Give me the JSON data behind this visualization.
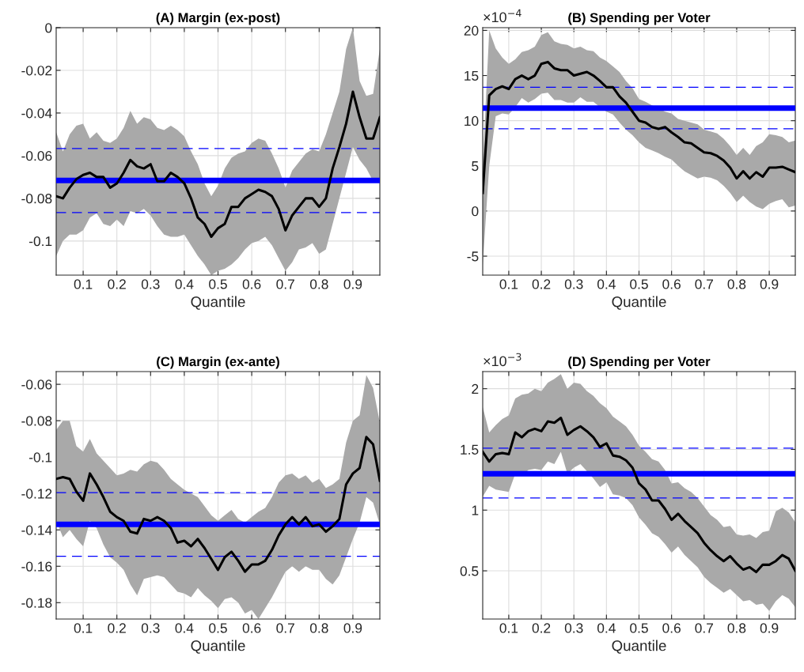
{
  "chart_data": [
    {
      "type": "line",
      "title": "(A) Margin (ex-post)",
      "xlabel": "Quantile",
      "grid": true,
      "xlim": [
        0.02,
        0.98
      ],
      "xticks": [
        0.1,
        0.2,
        0.3,
        0.4,
        0.5,
        0.6,
        0.7,
        0.8,
        0.9
      ],
      "ylim": [
        -0.116,
        0
      ],
      "yticks": [
        {
          "value": -0.1,
          "label": "-0.1"
        },
        {
          "value": -0.08,
          "label": "-0.08"
        },
        {
          "value": -0.06,
          "label": "-0.06"
        },
        {
          "value": -0.04,
          "label": "-0.04"
        },
        {
          "value": -0.02,
          "label": "-0.02"
        },
        0
      ],
      "x": [
        0.02,
        0.04,
        0.06,
        0.08,
        0.1,
        0.12,
        0.14,
        0.16,
        0.18,
        0.2,
        0.22,
        0.24,
        0.26,
        0.28,
        0.3,
        0.32,
        0.34,
        0.36,
        0.38,
        0.4,
        0.42,
        0.44,
        0.46,
        0.48,
        0.5,
        0.52,
        0.54,
        0.56,
        0.58,
        0.6,
        0.62,
        0.64,
        0.66,
        0.68,
        0.7,
        0.72,
        0.74,
        0.76,
        0.78,
        0.8,
        0.82,
        0.84,
        0.86,
        0.88,
        0.9,
        0.92,
        0.94,
        0.96,
        0.98
      ],
      "series": [
        {
          "color": "#000000",
          "line_style": "solid",
          "values": [
            -0.079,
            -0.08,
            -0.075,
            -0.071,
            -0.069,
            -0.068,
            -0.07,
            -0.07,
            -0.075,
            -0.073,
            -0.068,
            -0.062,
            -0.065,
            -0.066,
            -0.064,
            -0.072,
            -0.072,
            -0.068,
            -0.07,
            -0.073,
            -0.08,
            -0.089,
            -0.092,
            -0.098,
            -0.094,
            -0.092,
            -0.084,
            -0.084,
            -0.08,
            -0.078,
            -0.076,
            -0.077,
            -0.079,
            -0.085,
            -0.095,
            -0.088,
            -0.084,
            -0.08,
            -0.08,
            -0.084,
            -0.08,
            -0.066,
            -0.056,
            -0.045,
            -0.03,
            -0.042,
            -0.052,
            -0.052,
            -0.042
          ],
          "upper": [
            -0.049,
            -0.058,
            -0.05,
            -0.046,
            -0.045,
            -0.052,
            -0.049,
            -0.053,
            -0.054,
            -0.052,
            -0.047,
            -0.039,
            -0.045,
            -0.042,
            -0.043,
            -0.047,
            -0.048,
            -0.046,
            -0.048,
            -0.051,
            -0.058,
            -0.064,
            -0.073,
            -0.079,
            -0.074,
            -0.066,
            -0.061,
            -0.059,
            -0.058,
            -0.054,
            -0.052,
            -0.053,
            -0.059,
            -0.066,
            -0.075,
            -0.067,
            -0.063,
            -0.059,
            -0.057,
            -0.058,
            -0.05,
            -0.04,
            -0.03,
            -0.01,
            0.0,
            -0.025,
            -0.032,
            -0.031,
            -0.01
          ],
          "lower": [
            -0.107,
            -0.1,
            -0.097,
            -0.097,
            -0.095,
            -0.089,
            -0.087,
            -0.092,
            -0.093,
            -0.09,
            -0.093,
            -0.086,
            -0.087,
            -0.085,
            -0.088,
            -0.093,
            -0.097,
            -0.098,
            -0.098,
            -0.097,
            -0.102,
            -0.107,
            -0.111,
            -0.116,
            -0.114,
            -0.113,
            -0.111,
            -0.108,
            -0.104,
            -0.101,
            -0.1,
            -0.098,
            -0.102,
            -0.108,
            -0.114,
            -0.11,
            -0.104,
            -0.103,
            -0.101,
            -0.106,
            -0.104,
            -0.092,
            -0.08,
            -0.068,
            -0.056,
            -0.062,
            -0.066,
            -0.072,
            -0.071
          ]
        }
      ],
      "ref_lines": [
        {
          "axis": "y",
          "value": -0.0716,
          "color": "#0000ff",
          "line_style": "solid"
        },
        {
          "axis": "y",
          "value": -0.0567,
          "color": "#0000ff",
          "line_style": "dashed"
        },
        {
          "axis": "y",
          "value": -0.0867,
          "color": "#0000ff",
          "line_style": "dashed"
        }
      ]
    },
    {
      "type": "line",
      "title": "(B) Spending per Voter",
      "xlabel": "Quantile",
      "grid": true,
      "annotations": [
        "×10$^{−4}$"
      ],
      "xlim": [
        0.02,
        0.98
      ],
      "xticks": [
        0.1,
        0.2,
        0.3,
        0.4,
        0.5,
        0.6,
        0.7,
        0.8,
        0.9
      ],
      "ylim": [
        -7.1,
        20.3
      ],
      "yticks": [
        {
          "value": -5,
          "label": "-5"
        },
        0,
        5,
        10,
        15,
        20
      ],
      "x": [
        0.02,
        0.04,
        0.06,
        0.08,
        0.1,
        0.12,
        0.14,
        0.16,
        0.18,
        0.2,
        0.22,
        0.24,
        0.26,
        0.28,
        0.3,
        0.32,
        0.34,
        0.36,
        0.38,
        0.4,
        0.42,
        0.44,
        0.46,
        0.48,
        0.5,
        0.52,
        0.54,
        0.56,
        0.58,
        0.6,
        0.62,
        0.64,
        0.66,
        0.68,
        0.7,
        0.72,
        0.74,
        0.76,
        0.78,
        0.8,
        0.82,
        0.84,
        0.86,
        0.88,
        0.9,
        0.92,
        0.94,
        0.96,
        0.98
      ],
      "series": [
        {
          "color": "#000000",
          "line_style": "solid",
          "values": [
            2.0,
            12.8,
            13.5,
            13.8,
            13.5,
            14.6,
            15.0,
            14.6,
            15.0,
            16.3,
            16.5,
            15.8,
            15.6,
            15.6,
            15.0,
            15.2,
            15.4,
            15.0,
            14.4,
            13.7,
            13.7,
            12.7,
            12.0,
            11.0,
            10.0,
            9.8,
            9.3,
            9.1,
            9.3,
            8.7,
            8.2,
            7.6,
            7.5,
            7.0,
            6.5,
            6.4,
            6.1,
            5.6,
            4.8,
            3.6,
            4.4,
            3.6,
            4.3,
            3.8,
            4.8,
            4.8,
            4.9,
            4.6,
            4.3
          ],
          "upper": [
            5.0,
            20.0,
            18.0,
            17.0,
            16.3,
            16.8,
            17.6,
            17.8,
            18.2,
            19.5,
            19.8,
            18.8,
            18.5,
            18.4,
            18.0,
            18.2,
            17.8,
            17.7,
            17.0,
            16.6,
            16.0,
            15.4,
            14.4,
            13.6,
            12.4,
            12.1,
            11.7,
            11.4,
            11.0,
            10.8,
            10.2,
            10.0,
            9.8,
            9.6,
            9.0,
            8.8,
            8.6,
            8.0,
            7.2,
            6.2,
            7.0,
            6.2,
            7.2,
            7.6,
            8.5,
            8.4,
            8.2,
            7.6,
            7.8
          ],
          "lower": [
            -6.0,
            5.0,
            10.5,
            10.8,
            10.7,
            11.5,
            12.5,
            12.0,
            12.4,
            13.0,
            13.1,
            12.3,
            12.3,
            12.0,
            12.0,
            12.6,
            12.1,
            12.1,
            11.5,
            11.0,
            10.7,
            9.8,
            9.0,
            8.4,
            7.6,
            7.0,
            6.7,
            6.4,
            6.0,
            5.7,
            5.0,
            4.4,
            4.0,
            3.6,
            3.8,
            3.7,
            3.4,
            2.8,
            2.0,
            1.0,
            1.7,
            1.0,
            0.5,
            0.2,
            0.8,
            1.1,
            1.3,
            0.4,
            0.6
          ]
        }
      ],
      "ref_lines": [
        {
          "axis": "y",
          "value": 11.4,
          "color": "#0000ff",
          "line_style": "solid"
        },
        {
          "axis": "y",
          "value": 13.7,
          "color": "#0000ff",
          "line_style": "dashed"
        },
        {
          "axis": "y",
          "value": 9.1,
          "color": "#0000ff",
          "line_style": "dashed"
        }
      ]
    },
    {
      "type": "line",
      "title": "(C) Margin (ex-ante)",
      "xlabel": "Quantile",
      "grid": true,
      "xlim": [
        0.02,
        0.98
      ],
      "xticks": [
        0.1,
        0.2,
        0.3,
        0.4,
        0.5,
        0.6,
        0.7,
        0.8,
        0.9
      ],
      "ylim": [
        -0.189,
        -0.053
      ],
      "yticks": [
        {
          "value": -0.18,
          "label": "-0.18"
        },
        {
          "value": -0.16,
          "label": "-0.16"
        },
        {
          "value": -0.14,
          "label": "-0.14"
        },
        {
          "value": -0.12,
          "label": "-0.12"
        },
        {
          "value": -0.1,
          "label": "-0.1"
        },
        {
          "value": -0.08,
          "label": "-0.08"
        },
        {
          "value": -0.06,
          "label": "-0.06"
        }
      ],
      "x": [
        0.02,
        0.04,
        0.06,
        0.08,
        0.1,
        0.12,
        0.14,
        0.16,
        0.18,
        0.2,
        0.22,
        0.24,
        0.26,
        0.28,
        0.3,
        0.32,
        0.34,
        0.36,
        0.38,
        0.4,
        0.42,
        0.44,
        0.46,
        0.48,
        0.5,
        0.52,
        0.54,
        0.56,
        0.58,
        0.6,
        0.62,
        0.64,
        0.66,
        0.68,
        0.7,
        0.72,
        0.74,
        0.76,
        0.78,
        0.8,
        0.82,
        0.84,
        0.86,
        0.88,
        0.9,
        0.92,
        0.94,
        0.96,
        0.98
      ],
      "series": [
        {
          "color": "#000000",
          "line_style": "solid",
          "values": [
            -0.112,
            -0.111,
            -0.112,
            -0.119,
            -0.124,
            -0.109,
            -0.115,
            -0.122,
            -0.13,
            -0.133,
            -0.135,
            -0.141,
            -0.142,
            -0.134,
            -0.135,
            -0.133,
            -0.135,
            -0.139,
            -0.147,
            -0.146,
            -0.149,
            -0.145,
            -0.15,
            -0.156,
            -0.162,
            -0.155,
            -0.152,
            -0.157,
            -0.163,
            -0.159,
            -0.159,
            -0.157,
            -0.151,
            -0.143,
            -0.137,
            -0.133,
            -0.137,
            -0.133,
            -0.138,
            -0.137,
            -0.141,
            -0.138,
            -0.134,
            -0.115,
            -0.109,
            -0.106,
            -0.089,
            -0.093,
            -0.113
          ],
          "upper": [
            -0.085,
            -0.08,
            -0.08,
            -0.094,
            -0.097,
            -0.09,
            -0.098,
            -0.102,
            -0.106,
            -0.11,
            -0.109,
            -0.107,
            -0.108,
            -0.104,
            -0.102,
            -0.103,
            -0.107,
            -0.112,
            -0.115,
            -0.118,
            -0.12,
            -0.122,
            -0.127,
            -0.132,
            -0.135,
            -0.132,
            -0.129,
            -0.134,
            -0.136,
            -0.133,
            -0.13,
            -0.128,
            -0.122,
            -0.114,
            -0.11,
            -0.109,
            -0.112,
            -0.11,
            -0.114,
            -0.112,
            -0.117,
            -0.115,
            -0.112,
            -0.092,
            -0.08,
            -0.077,
            -0.055,
            -0.062,
            -0.081
          ],
          "lower": [
            -0.135,
            -0.144,
            -0.14,
            -0.145,
            -0.149,
            -0.135,
            -0.139,
            -0.148,
            -0.155,
            -0.158,
            -0.162,
            -0.17,
            -0.176,
            -0.167,
            -0.166,
            -0.165,
            -0.166,
            -0.17,
            -0.174,
            -0.175,
            -0.177,
            -0.172,
            -0.176,
            -0.179,
            -0.183,
            -0.178,
            -0.177,
            -0.18,
            -0.186,
            -0.184,
            -0.189,
            -0.183,
            -0.177,
            -0.17,
            -0.163,
            -0.16,
            -0.163,
            -0.16,
            -0.162,
            -0.162,
            -0.167,
            -0.17,
            -0.165,
            -0.155,
            -0.145,
            -0.136,
            -0.122,
            -0.125,
            -0.137
          ]
        }
      ],
      "ref_lines": [
        {
          "axis": "y",
          "value": -0.137,
          "color": "#0000ff",
          "line_style": "solid"
        },
        {
          "axis": "y",
          "value": -0.1195,
          "color": "#0000ff",
          "line_style": "dashed"
        },
        {
          "axis": "y",
          "value": -0.1545,
          "color": "#0000ff",
          "line_style": "dashed"
        }
      ]
    },
    {
      "type": "line",
      "title": "(D) Spending per Voter",
      "xlabel": "Quantile",
      "grid": true,
      "annotations": [
        "×10$^{−3}$"
      ],
      "xlim": [
        0.02,
        0.98
      ],
      "xticks": [
        0.1,
        0.2,
        0.3,
        0.4,
        0.5,
        0.6,
        0.7,
        0.8,
        0.9
      ],
      "ylim": [
        0.103,
        2.141
      ],
      "yticks": [
        0.5,
        1,
        1.5,
        2
      ],
      "x": [
        0.02,
        0.04,
        0.06,
        0.08,
        0.1,
        0.12,
        0.14,
        0.16,
        0.18,
        0.2,
        0.22,
        0.24,
        0.26,
        0.28,
        0.3,
        0.32,
        0.34,
        0.36,
        0.38,
        0.4,
        0.42,
        0.44,
        0.46,
        0.48,
        0.5,
        0.52,
        0.54,
        0.56,
        0.58,
        0.6,
        0.62,
        0.64,
        0.66,
        0.68,
        0.7,
        0.72,
        0.74,
        0.76,
        0.78,
        0.8,
        0.82,
        0.84,
        0.86,
        0.88,
        0.9,
        0.92,
        0.94,
        0.96,
        0.98
      ],
      "series": [
        {
          "color": "#000000",
          "line_style": "solid",
          "values": [
            1.48,
            1.4,
            1.46,
            1.47,
            1.46,
            1.64,
            1.6,
            1.65,
            1.67,
            1.65,
            1.73,
            1.72,
            1.76,
            1.62,
            1.66,
            1.69,
            1.65,
            1.6,
            1.52,
            1.55,
            1.45,
            1.44,
            1.41,
            1.35,
            1.22,
            1.17,
            1.08,
            1.08,
            1.01,
            0.92,
            0.97,
            0.91,
            0.86,
            0.81,
            0.73,
            0.67,
            0.62,
            0.58,
            0.62,
            0.56,
            0.51,
            0.53,
            0.49,
            0.55,
            0.55,
            0.58,
            0.63,
            0.6,
            0.5
          ],
          "upper": [
            1.85,
            1.64,
            1.7,
            1.75,
            1.78,
            1.92,
            1.95,
            1.96,
            2.0,
            1.98,
            2.05,
            2.08,
            2.12,
            2.0,
            2.05,
            2.04,
            1.98,
            1.94,
            1.88,
            1.84,
            1.77,
            1.73,
            1.69,
            1.62,
            1.53,
            1.48,
            1.42,
            1.4,
            1.33,
            1.22,
            1.23,
            1.18,
            1.15,
            1.1,
            1.03,
            0.96,
            0.92,
            0.86,
            0.87,
            0.8,
            0.79,
            0.8,
            0.77,
            0.82,
            0.83,
            0.99,
            1.02,
            0.98,
            0.9
          ],
          "lower": [
            1.11,
            1.2,
            1.17,
            1.16,
            1.15,
            1.3,
            1.28,
            1.33,
            1.34,
            1.33,
            1.4,
            1.38,
            1.48,
            1.3,
            1.35,
            1.38,
            1.32,
            1.26,
            1.19,
            1.23,
            1.13,
            1.12,
            1.1,
            1.04,
            0.94,
            0.88,
            0.81,
            0.78,
            0.72,
            0.65,
            0.7,
            0.63,
            0.58,
            0.53,
            0.45,
            0.4,
            0.36,
            0.32,
            0.35,
            0.3,
            0.25,
            0.26,
            0.22,
            0.23,
            0.17,
            0.25,
            0.3,
            0.27,
            0.2
          ]
        }
      ],
      "ref_lines": [
        {
          "axis": "y",
          "value": 1.3,
          "color": "#0000ff",
          "line_style": "solid"
        },
        {
          "axis": "y",
          "value": 1.51,
          "color": "#0000ff",
          "line_style": "dashed"
        },
        {
          "axis": "y",
          "value": 1.1,
          "color": "#0000ff",
          "line_style": "dashed"
        }
      ]
    }
  ]
}
